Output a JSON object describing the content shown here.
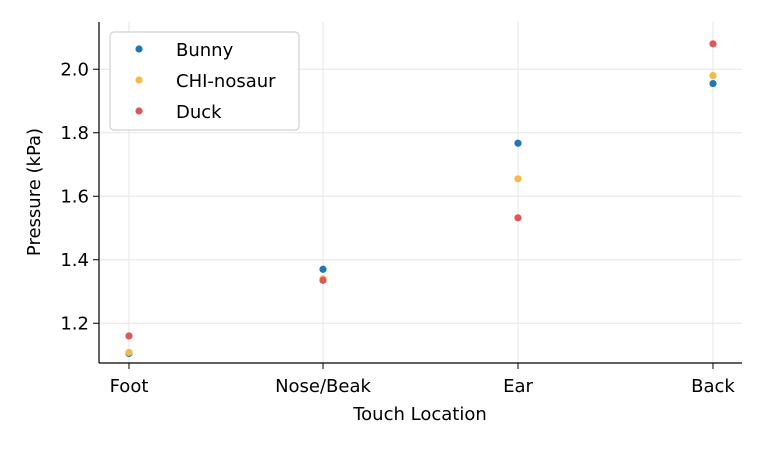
{
  "chart_data": {
    "type": "scatter",
    "title": "",
    "xlabel": "Touch Location",
    "ylabel": "Pressure (kPa)",
    "categories": [
      "Foot",
      "Nose/Beak",
      "Ear",
      "Back"
    ],
    "ylim": [
      1.06,
      2.13
    ],
    "yticks": [
      1.2,
      1.4,
      1.6,
      1.8,
      2.0
    ],
    "ytick_labels": [
      "1.2",
      "1.4",
      "1.6",
      "1.8",
      "2.0"
    ],
    "grid": true,
    "legend_position": "top-left",
    "series": [
      {
        "name": "Bunny",
        "color": "#1f77b4",
        "values": [
          1.105,
          1.37,
          1.767,
          1.955
        ]
      },
      {
        "name": "CHI-nosaur",
        "color": "#f5b94a",
        "values": [
          1.108,
          1.34,
          1.655,
          1.98
        ]
      },
      {
        "name": "Duck",
        "color": "#e15759",
        "values": [
          1.16,
          1.335,
          1.532,
          2.08
        ]
      }
    ]
  }
}
